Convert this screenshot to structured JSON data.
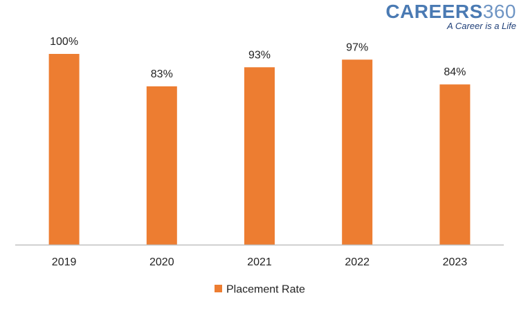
{
  "brand": {
    "name_letters": "CAREERS",
    "name_digits": "360",
    "tagline": "A Career is a Life"
  },
  "colors": {
    "bar": "#ED7D31",
    "axis": "#BFBFBF",
    "text": "#222222"
  },
  "chart_data": {
    "type": "bar",
    "title": "",
    "xlabel": "",
    "ylabel": "",
    "categories": [
      "2019",
      "2020",
      "2021",
      "2022",
      "2023"
    ],
    "series": [
      {
        "name": "Placement Rate",
        "values": [
          100,
          83,
          93,
          97,
          84
        ],
        "labels": [
          "100%",
          "83%",
          "93%",
          "97%",
          "84%"
        ]
      }
    ],
    "ylim": [
      0,
      100
    ],
    "grid": false,
    "legend_position": "bottom"
  }
}
